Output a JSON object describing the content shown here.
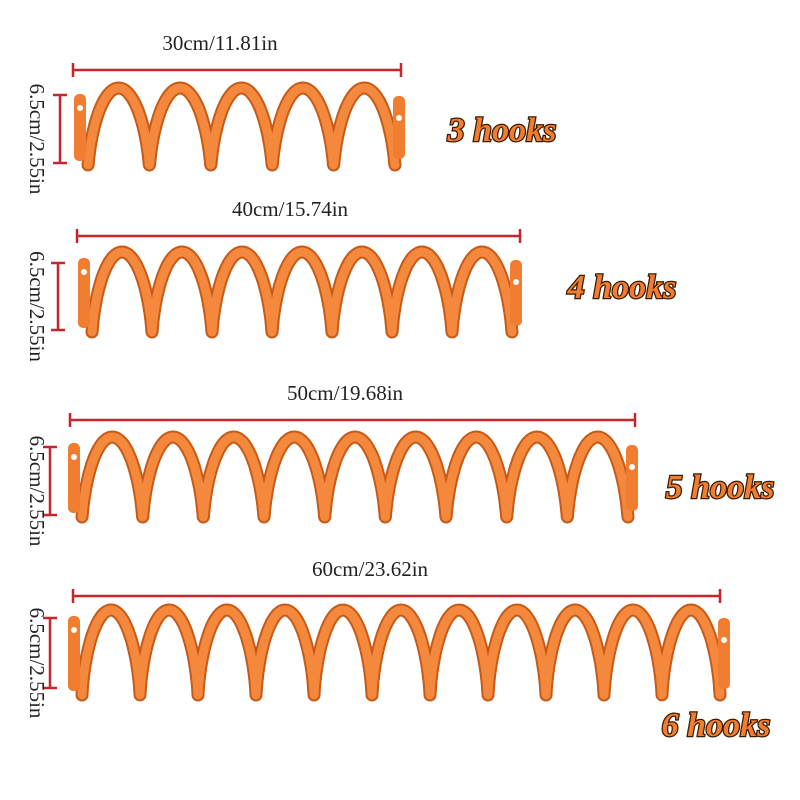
{
  "items": [
    {
      "width": "30cm/11.81in",
      "height": "6.5cm/2.55in",
      "hooks": "3 hooks"
    },
    {
      "width": "40cm/15.74in",
      "height": "6.5cm/2.55in",
      "hooks": "4 hooks"
    },
    {
      "width": "50cm/19.68in",
      "height": "6.5cm/2.55in",
      "hooks": "5 hooks"
    },
    {
      "width": "60cm/23.62in",
      "height": "6.5cm/2.55in",
      "hooks": "6 hooks"
    }
  ]
}
